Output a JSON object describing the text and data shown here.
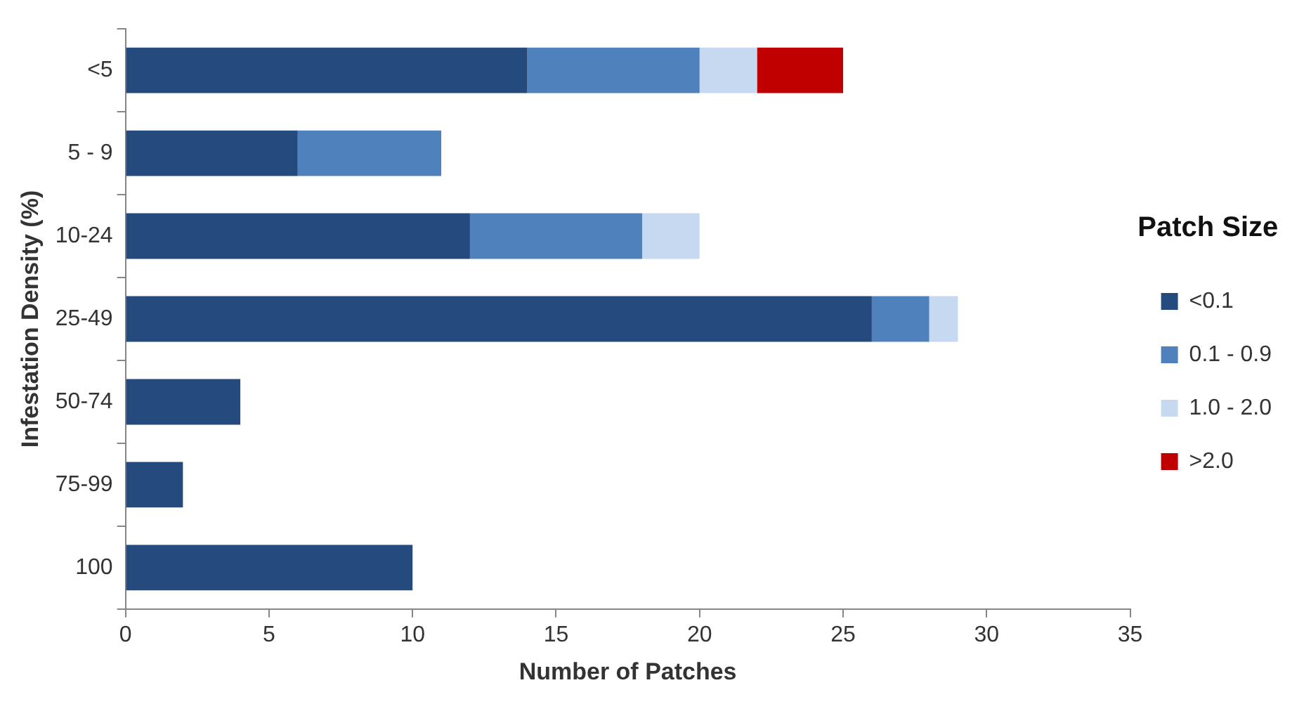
{
  "chart_data": {
    "type": "bar",
    "orientation": "horizontal",
    "stacked": true,
    "xlabel": "Number of Patches",
    "ylabel": "Infestation Density (%)",
    "legend_title": "Patch Size",
    "legend": "right",
    "grid": false,
    "categories": [
      "<5",
      "5 - 9",
      "10-24",
      "25-49",
      "50-74",
      "75-99",
      "100"
    ],
    "xlim": [
      0,
      35
    ],
    "xticks": [
      0,
      5,
      10,
      15,
      20,
      25,
      30,
      35
    ],
    "series": [
      {
        "name": "<0.1",
        "color": "#244a7e",
        "values": [
          14,
          6,
          12,
          26,
          4,
          2,
          10
        ]
      },
      {
        "name": "0.1 - 0.9",
        "color": "#4f81bd",
        "values": [
          6,
          5,
          6,
          2,
          null,
          null,
          null
        ]
      },
      {
        "name": "1.0 - 2.0",
        "color": "#c6d9f1",
        "values": [
          2,
          null,
          2,
          1,
          null,
          null,
          null
        ]
      },
      {
        "name": ">2.0",
        "color": "#c00000",
        "values": [
          3,
          null,
          null,
          null,
          null,
          null,
          null
        ]
      }
    ]
  }
}
